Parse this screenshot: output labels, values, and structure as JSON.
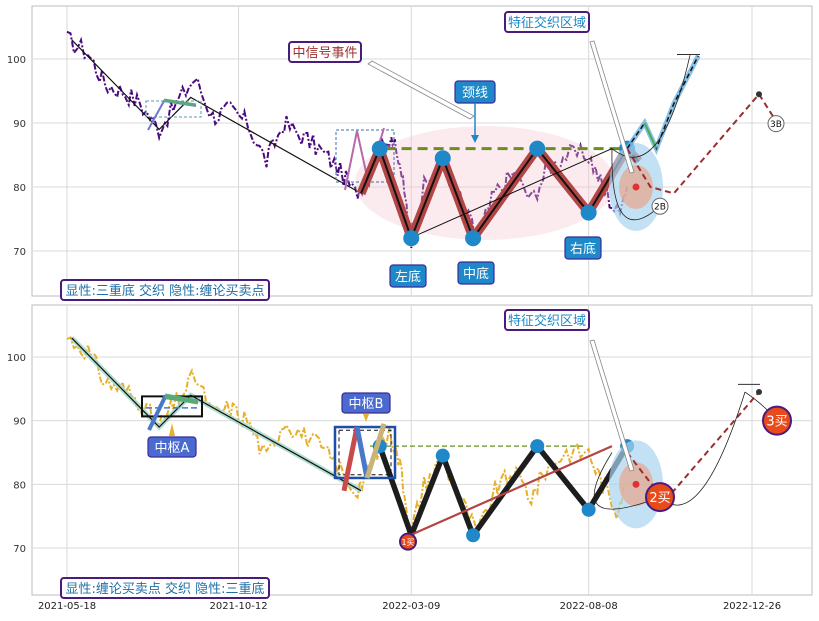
{
  "chart_data": [
    {
      "type": "line",
      "title": "",
      "xlabel": "",
      "ylabel": "",
      "ylim": [
        63,
        106
      ],
      "yticks": [
        70,
        80,
        90,
        100
      ],
      "grid": true,
      "caption": "显性:三重底 交织 隐性:缠论买卖点",
      "series": [
        {
          "name": "",
          "color": "#4b0a7d",
          "style": "dash-dot",
          "x": [
            "2021-05-18",
            "2021-06-05",
            "2021-06-20",
            "2021-07-05",
            "2021-07-20",
            "2021-08-05",
            "2021-08-20",
            "2021-09-05",
            "2021-09-20",
            "2021-10-05",
            "2021-10-20",
            "2021-11-05",
            "2021-11-20",
            "2021-12-05",
            "2021-12-20",
            "2022-01-05",
            "2022-01-20",
            "2022-02-01",
            "2022-02-10",
            "2022-02-20",
            "2022-03-01",
            "2022-03-09",
            "2022-03-20",
            "2022-04-05",
            "2022-04-20",
            "2022-05-05",
            "2022-05-20",
            "2022-06-05",
            "2022-06-20",
            "2022-07-05",
            "2022-07-20",
            "2022-08-08",
            "2022-08-20",
            "2022-09-01",
            "2022-09-10"
          ],
          "y": [
            103,
            101,
            96,
            95,
            93,
            89,
            93,
            97,
            91,
            92,
            90,
            84,
            90,
            88,
            86,
            83,
            79,
            82,
            86,
            88,
            82,
            72,
            80,
            84,
            78,
            72,
            79,
            82,
            78,
            83,
            85,
            85,
            80,
            76,
            80
          ]
        },
        {
          "name": "",
          "color": "#000000",
          "style": "solid",
          "x": [
            "2021-05-22",
            "2021-08-05",
            "2021-09-01",
            "2022-01-25"
          ],
          "y": [
            103,
            89,
            94,
            79
          ]
        }
      ],
      "zigzag": {
        "x": [
          "2022-01-25",
          "2022-02-10",
          "2022-03-09",
          "2022-04-05",
          "2022-05-01",
          "2022-06-25",
          "2022-08-08",
          "2022-09-10",
          "2022-09-20"
        ],
        "y": [
          79,
          86,
          72,
          84.5,
          72,
          86,
          76,
          86,
          84
        ]
      },
      "bottom_points": [
        {
          "x": "2022-03-09",
          "y": 72,
          "label": "左底"
        },
        {
          "x": "2022-05-01",
          "y": 72,
          "label": "中底"
        },
        {
          "x": "2022-08-08",
          "y": 76,
          "label": "右底"
        }
      ],
      "top_points": [
        {
          "x": "2022-02-10",
          "y": 86
        },
        {
          "x": "2022-04-05",
          "y": 84.5
        },
        {
          "x": "2022-06-25",
          "y": 86
        },
        {
          "x": "2022-09-10",
          "y": 86
        }
      ],
      "neckline": {
        "y": 86,
        "x_from": "2022-02-15",
        "x_to": "2022-09-10",
        "label": "颈线"
      },
      "projection": {
        "x": [
          "2022-09-10",
          "2022-09-25",
          "2022-10-05",
          "2022-10-20",
          "2022-11-10"
        ],
        "y": [
          86,
          90,
          86,
          93,
          100.5
        ]
      },
      "projection_b": {
        "x": [
          "2022-09-10",
          "2022-09-30",
          "2022-10-20",
          "2023-01-01",
          "2023-01-20"
        ],
        "y": [
          86,
          80,
          79,
          94.5,
          89
        ]
      },
      "annotations": [
        "中信号事件",
        "特征交织区域"
      ],
      "point_badges": [
        "2B",
        "3B"
      ]
    },
    {
      "type": "line",
      "title": "",
      "xlabel": "",
      "ylabel": "",
      "ylim": [
        63,
        106
      ],
      "yticks": [
        70,
        80,
        90,
        100
      ],
      "xticks": [
        "2021-05-18",
        "2021-10-12",
        "2022-03-09",
        "2022-08-08",
        "2022-12-26"
      ],
      "grid": true,
      "caption": "显性:缠论买卖点 交织 隐性:三重底",
      "series": [
        {
          "name": "",
          "color": "#e8b02a",
          "style": "dash-dot",
          "x": [
            "2021-05-18",
            "2021-06-05",
            "2021-06-20",
            "2021-07-05",
            "2021-07-20",
            "2021-08-05",
            "2021-08-20",
            "2021-09-05",
            "2021-09-20",
            "2021-10-05",
            "2021-10-20",
            "2021-11-05",
            "2021-11-20",
            "2021-12-05",
            "2021-12-20",
            "2022-01-05",
            "2022-01-20",
            "2022-02-01",
            "2022-02-10",
            "2022-02-20",
            "2022-03-01",
            "2022-03-09",
            "2022-03-20",
            "2022-04-05",
            "2022-04-20",
            "2022-05-05",
            "2022-05-20",
            "2022-06-05",
            "2022-06-20",
            "2022-07-05",
            "2022-07-20",
            "2022-08-08",
            "2022-08-20",
            "2022-09-01",
            "2022-09-10"
          ],
          "y": [
            103,
            101,
            96,
            95,
            93,
            89,
            93,
            97,
            91,
            92,
            90,
            84,
            90,
            88,
            86,
            83,
            79,
            82,
            86,
            88,
            82,
            72,
            80,
            84,
            78,
            72,
            79,
            82,
            78,
            83,
            85,
            85,
            80,
            76,
            80
          ]
        },
        {
          "name": "",
          "color": "#000000",
          "style": "solid",
          "x": [
            "2021-05-22",
            "2021-08-05",
            "2021-09-01",
            "2022-01-25"
          ],
          "y": [
            103,
            89,
            94,
            79
          ]
        }
      ],
      "zigzag": {
        "x": [
          "2022-02-10",
          "2022-03-09",
          "2022-04-05",
          "2022-05-01",
          "2022-06-25",
          "2022-08-08",
          "2022-09-10"
        ],
        "y": [
          86,
          72,
          84.5,
          72,
          86,
          76,
          86
        ]
      },
      "pivots": [
        {
          "label": "中枢A",
          "x_from": "2021-07-30",
          "x_to": "2021-09-10",
          "y_from": 91,
          "y_to": 93.5
        },
        {
          "label": "中枢B",
          "x_from": "2022-01-25",
          "x_to": "2022-03-01",
          "y_from": 81,
          "y_to": 89
        }
      ],
      "buy_points": [
        {
          "label": "1买",
          "x": "2022-03-09",
          "y": 71
        },
        {
          "label": "2买",
          "x": "2022-10-05",
          "y": 78
        },
        {
          "label": "3买",
          "x": "2023-01-20",
          "y": 90
        }
      ],
      "projection": {
        "x": [
          "2022-09-10",
          "2022-10-01",
          "2022-10-20",
          "2023-01-01"
        ],
        "y": [
          85,
          80,
          79,
          94.5
        ]
      },
      "annotations": [
        "特征交织区域"
      ]
    }
  ]
}
